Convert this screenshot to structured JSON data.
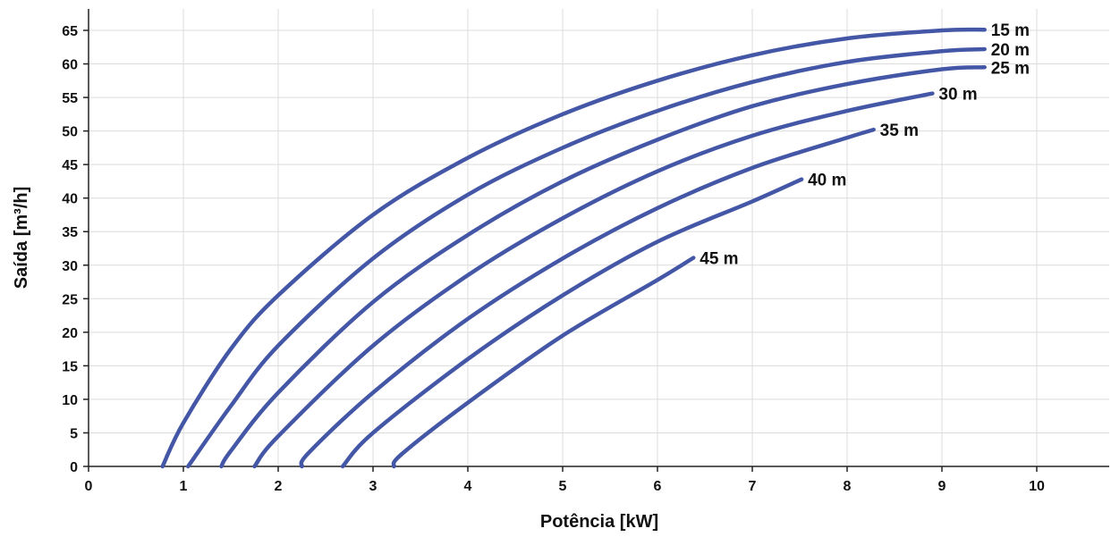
{
  "chart_data": {
    "type": "line",
    "xlabel": "Potência [kW]",
    "ylabel": "Saída [m³/h]",
    "xlim": [
      0,
      10.8
    ],
    "ylim": [
      0,
      66
    ],
    "x_ticks": [
      "0",
      "1",
      "2",
      "3",
      "4",
      "5",
      "6",
      "7",
      "8",
      "9",
      "10"
    ],
    "y_ticks": [
      "0",
      "5",
      "10",
      "15",
      "20",
      "25",
      "30",
      "35",
      "40",
      "45",
      "50",
      "55",
      "60",
      "65"
    ],
    "grid": true,
    "line_color": "#4457a6",
    "series": [
      {
        "name": "15 m",
        "x": [
          0.78,
          1.0,
          1.5,
          2.0,
          3.0,
          4.0,
          5.0,
          6.0,
          7.0,
          8.0,
          9.0,
          9.45
        ],
        "y": [
          0,
          6.5,
          17.5,
          25.5,
          37.5,
          46,
          52.5,
          57.5,
          61.3,
          63.8,
          65,
          65.1
        ]
      },
      {
        "name": "20 m",
        "x": [
          1.05,
          1.5,
          2.0,
          3.0,
          4.0,
          5.0,
          6.0,
          7.0,
          8.0,
          9.0,
          9.45
        ],
        "y": [
          0,
          9,
          18,
          31,
          40.5,
          47.5,
          53,
          57.3,
          60.3,
          61.9,
          62.2
        ]
      },
      {
        "name": "25 m",
        "x": [
          1.4,
          1.5,
          2.0,
          3.0,
          4.0,
          5.0,
          6.0,
          7.0,
          8.0,
          9.0,
          9.45
        ],
        "y": [
          0,
          2.3,
          11,
          24.5,
          34.5,
          42.5,
          48.7,
          53.7,
          57,
          59.2,
          59.5
        ]
      },
      {
        "name": "30 m",
        "x": [
          1.75,
          2.0,
          3.0,
          4.0,
          5.0,
          6.0,
          7.0,
          8.0,
          8.9
        ],
        "y": [
          0,
          4.5,
          18,
          28.5,
          37,
          44,
          49.3,
          53,
          55.6
        ]
      },
      {
        "name": "35 m",
        "x": [
          2.25,
          2.32,
          3.0,
          4.0,
          5.0,
          6.0,
          7.0,
          8.0,
          8.28
        ],
        "y": [
          0,
          2,
          11,
          22,
          31,
          38.5,
          44.5,
          49,
          50.2
        ]
      },
      {
        "name": "40 m",
        "x": [
          2.68,
          3.0,
          4.0,
          5.0,
          6.0,
          7.0,
          7.52
        ],
        "y": [
          0,
          5,
          16,
          25.5,
          33.5,
          39.5,
          42.8
        ]
      },
      {
        "name": "45 m",
        "x": [
          3.22,
          3.3,
          4.0,
          5.0,
          6.0,
          6.38
        ],
        "y": [
          0,
          1.8,
          9.5,
          19.5,
          27.8,
          31.1
        ]
      }
    ]
  }
}
